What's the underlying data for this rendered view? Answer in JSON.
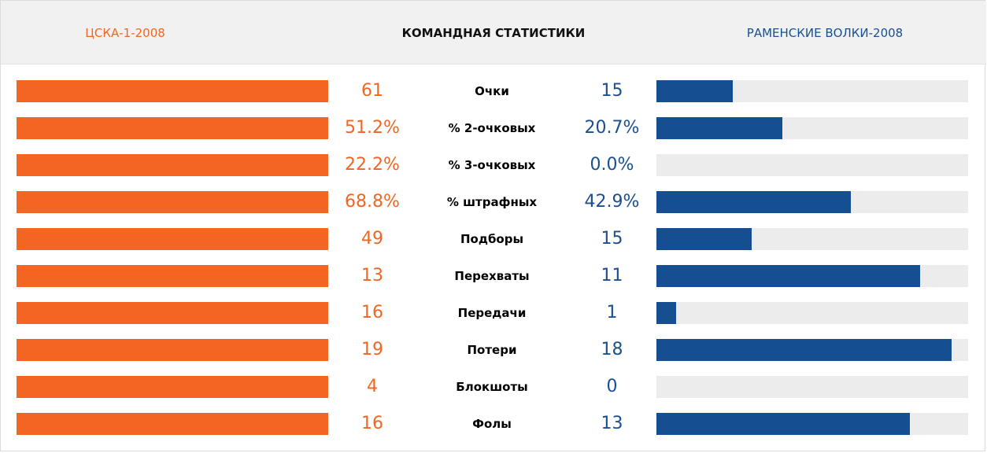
{
  "header": {
    "team_left": "ЦСКА-1-2008",
    "title": "КОМАНДНАЯ СТАТИСТИКИ",
    "team_right": "РАМЕНСКИЕ ВОЛКИ-2008"
  },
  "colors": {
    "left_accent": "#f26522",
    "right_accent": "#164e92",
    "track": "#ececec",
    "header_bg": "#f1f1f1"
  },
  "stats": [
    {
      "label": "Очки",
      "left": "61",
      "right": "15",
      "left_fill": 1.0,
      "right_fill": 0.245
    },
    {
      "label": "% 2-очковых",
      "left": "51.2%",
      "right": "20.7%",
      "left_fill": 1.0,
      "right_fill": 0.405
    },
    {
      "label": "% 3-очковых",
      "left": "22.2%",
      "right": "0.0%",
      "left_fill": 1.0,
      "right_fill": 0.0
    },
    {
      "label": "% штрафных",
      "left": "68.8%",
      "right": "42.9%",
      "left_fill": 1.0,
      "right_fill": 0.623
    },
    {
      "label": "Подборы",
      "left": "49",
      "right": "15",
      "left_fill": 1.0,
      "right_fill": 0.306
    },
    {
      "label": "Перехваты",
      "left": "13",
      "right": "11",
      "left_fill": 1.0,
      "right_fill": 0.846
    },
    {
      "label": "Передачи",
      "left": "16",
      "right": "1",
      "left_fill": 1.0,
      "right_fill": 0.0625
    },
    {
      "label": "Потери",
      "left": "19",
      "right": "18",
      "left_fill": 1.0,
      "right_fill": 0.947
    },
    {
      "label": "Блокшоты",
      "left": "4",
      "right": "0",
      "left_fill": 1.0,
      "right_fill": 0.0
    },
    {
      "label": "Фолы",
      "left": "16",
      "right": "13",
      "left_fill": 1.0,
      "right_fill": 0.8125
    }
  ]
}
